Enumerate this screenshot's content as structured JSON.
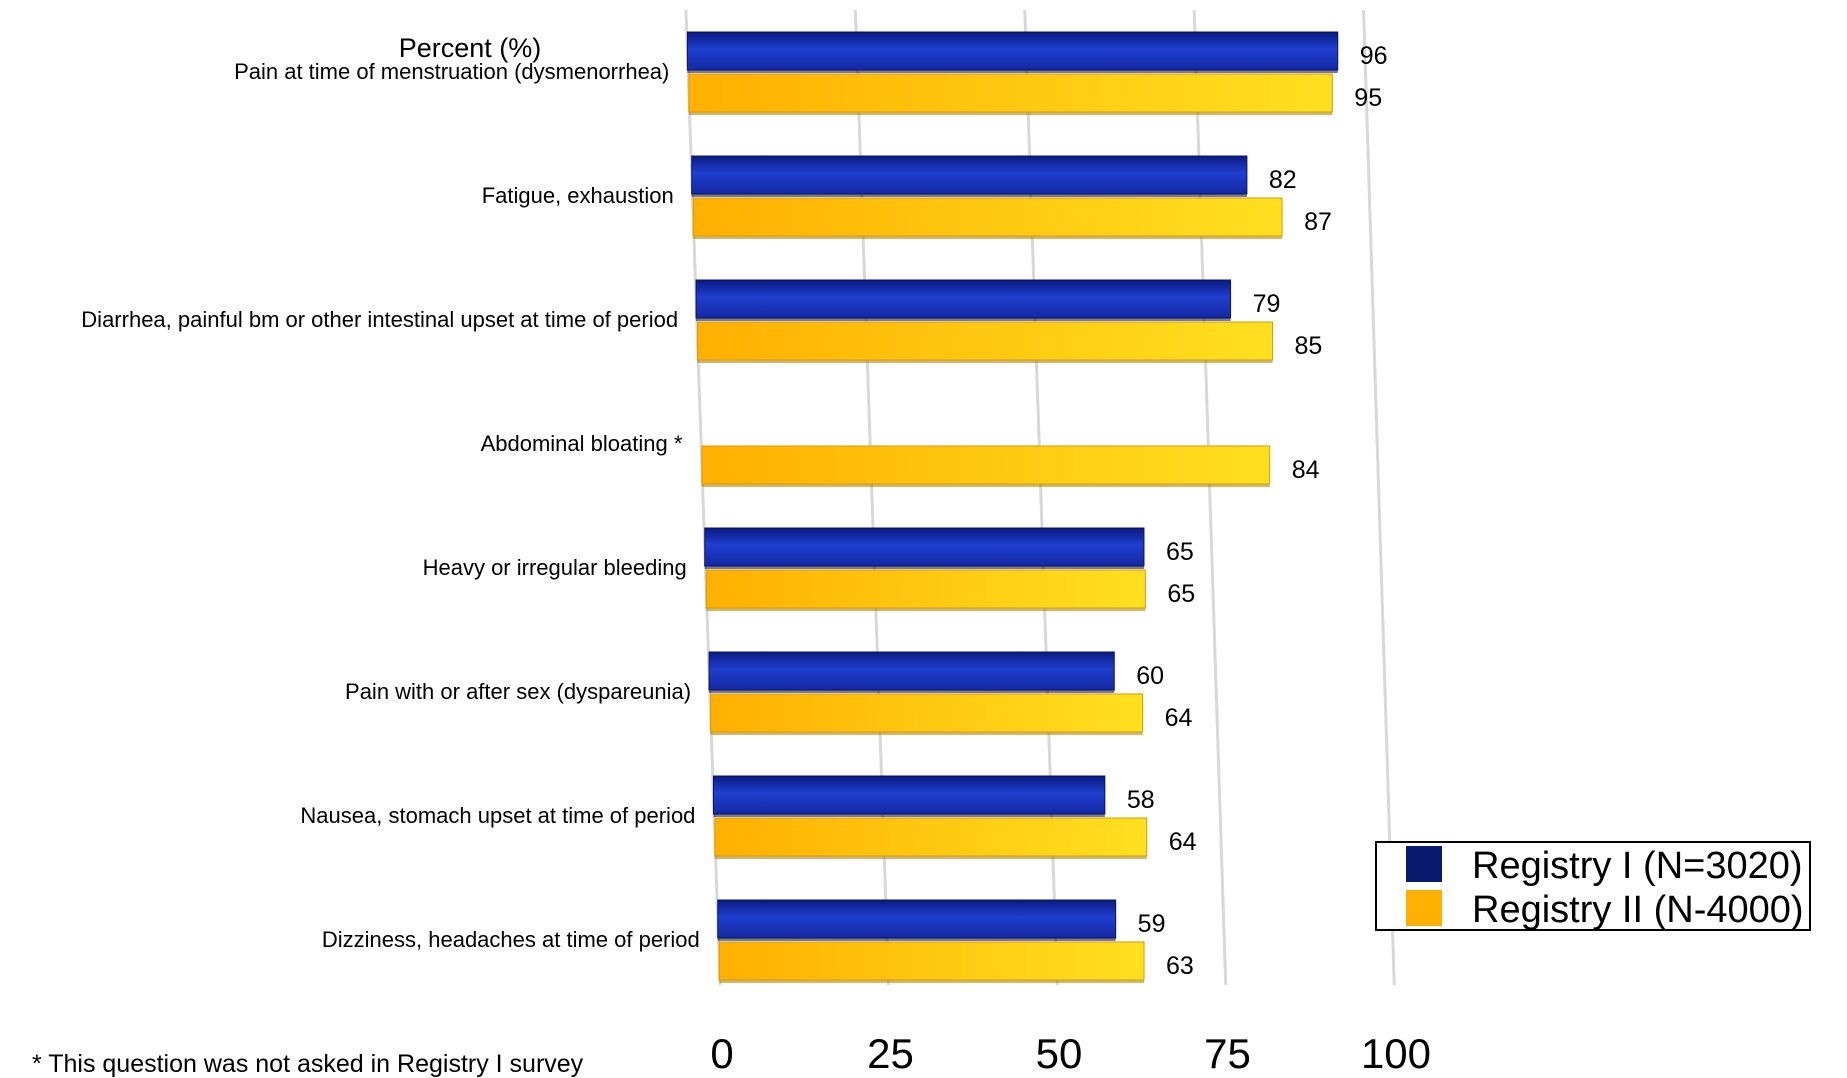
{
  "chart_data": {
    "type": "bar",
    "orientation": "horizontal",
    "title": "Percent (%)",
    "categories": [
      "Pain at time of menstruation (dysmenorrhea)",
      "Fatigue, exhaustion",
      "Diarrhea, painful bm or other intestinal upset at time of period",
      "Abdominal bloating *",
      "Heavy or irregular bleeding",
      "Pain with or after sex (dyspareunia)",
      "Nausea, stomach upset at time of period",
      "Dizziness, headaches at time of period"
    ],
    "series": [
      {
        "name": "Registry I (N=3020)",
        "color": "#1428a0",
        "values": [
          96,
          82,
          79,
          null,
          65,
          60,
          58,
          59
        ]
      },
      {
        "name": "Registry II (N-4000)",
        "color": "#ffb400",
        "values": [
          95,
          87,
          85,
          84,
          65,
          64,
          64,
          63
        ]
      }
    ],
    "xlim": [
      0,
      100
    ],
    "xticks": [
      0,
      25,
      50,
      75,
      100
    ],
    "grid": true,
    "legend_position": "bottom-right",
    "footnote": "* This question was not asked in Registry I survey"
  }
}
